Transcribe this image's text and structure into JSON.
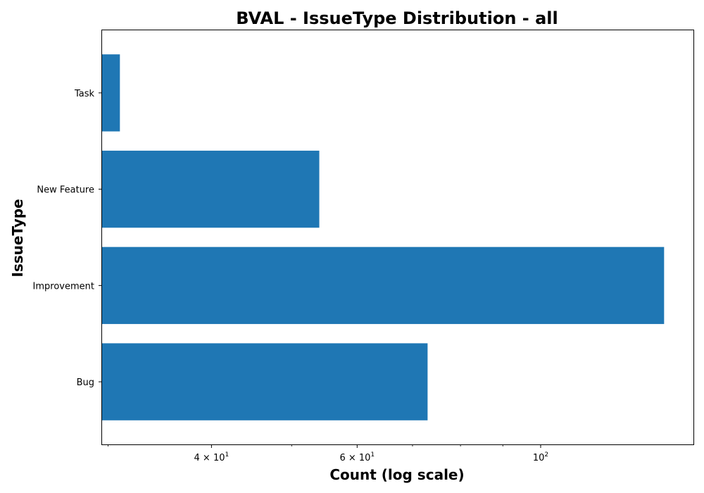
{
  "chart_data": {
    "type": "bar",
    "orientation": "horizontal",
    "title": "BVAL - IssueType Distribution - all",
    "xlabel": "Count (log scale)",
    "ylabel": "IssueType",
    "x_scale": "log",
    "xlim": [
      29.5,
      153
    ],
    "categories": [
      "Bug",
      "Improvement",
      "New Feature",
      "Task"
    ],
    "values": [
      73,
      141,
      54,
      31
    ],
    "bar_color": "#1f77b4",
    "x_major_ticks": [
      {
        "value": 40,
        "base": "4 × 10",
        "exp": "1"
      },
      {
        "value": 60,
        "base": "6 × 10",
        "exp": "1"
      },
      {
        "value": 100,
        "base": "10",
        "exp": "2"
      }
    ],
    "x_minor_ticks": [
      30,
      50,
      70,
      80,
      90
    ],
    "grid": false
  }
}
